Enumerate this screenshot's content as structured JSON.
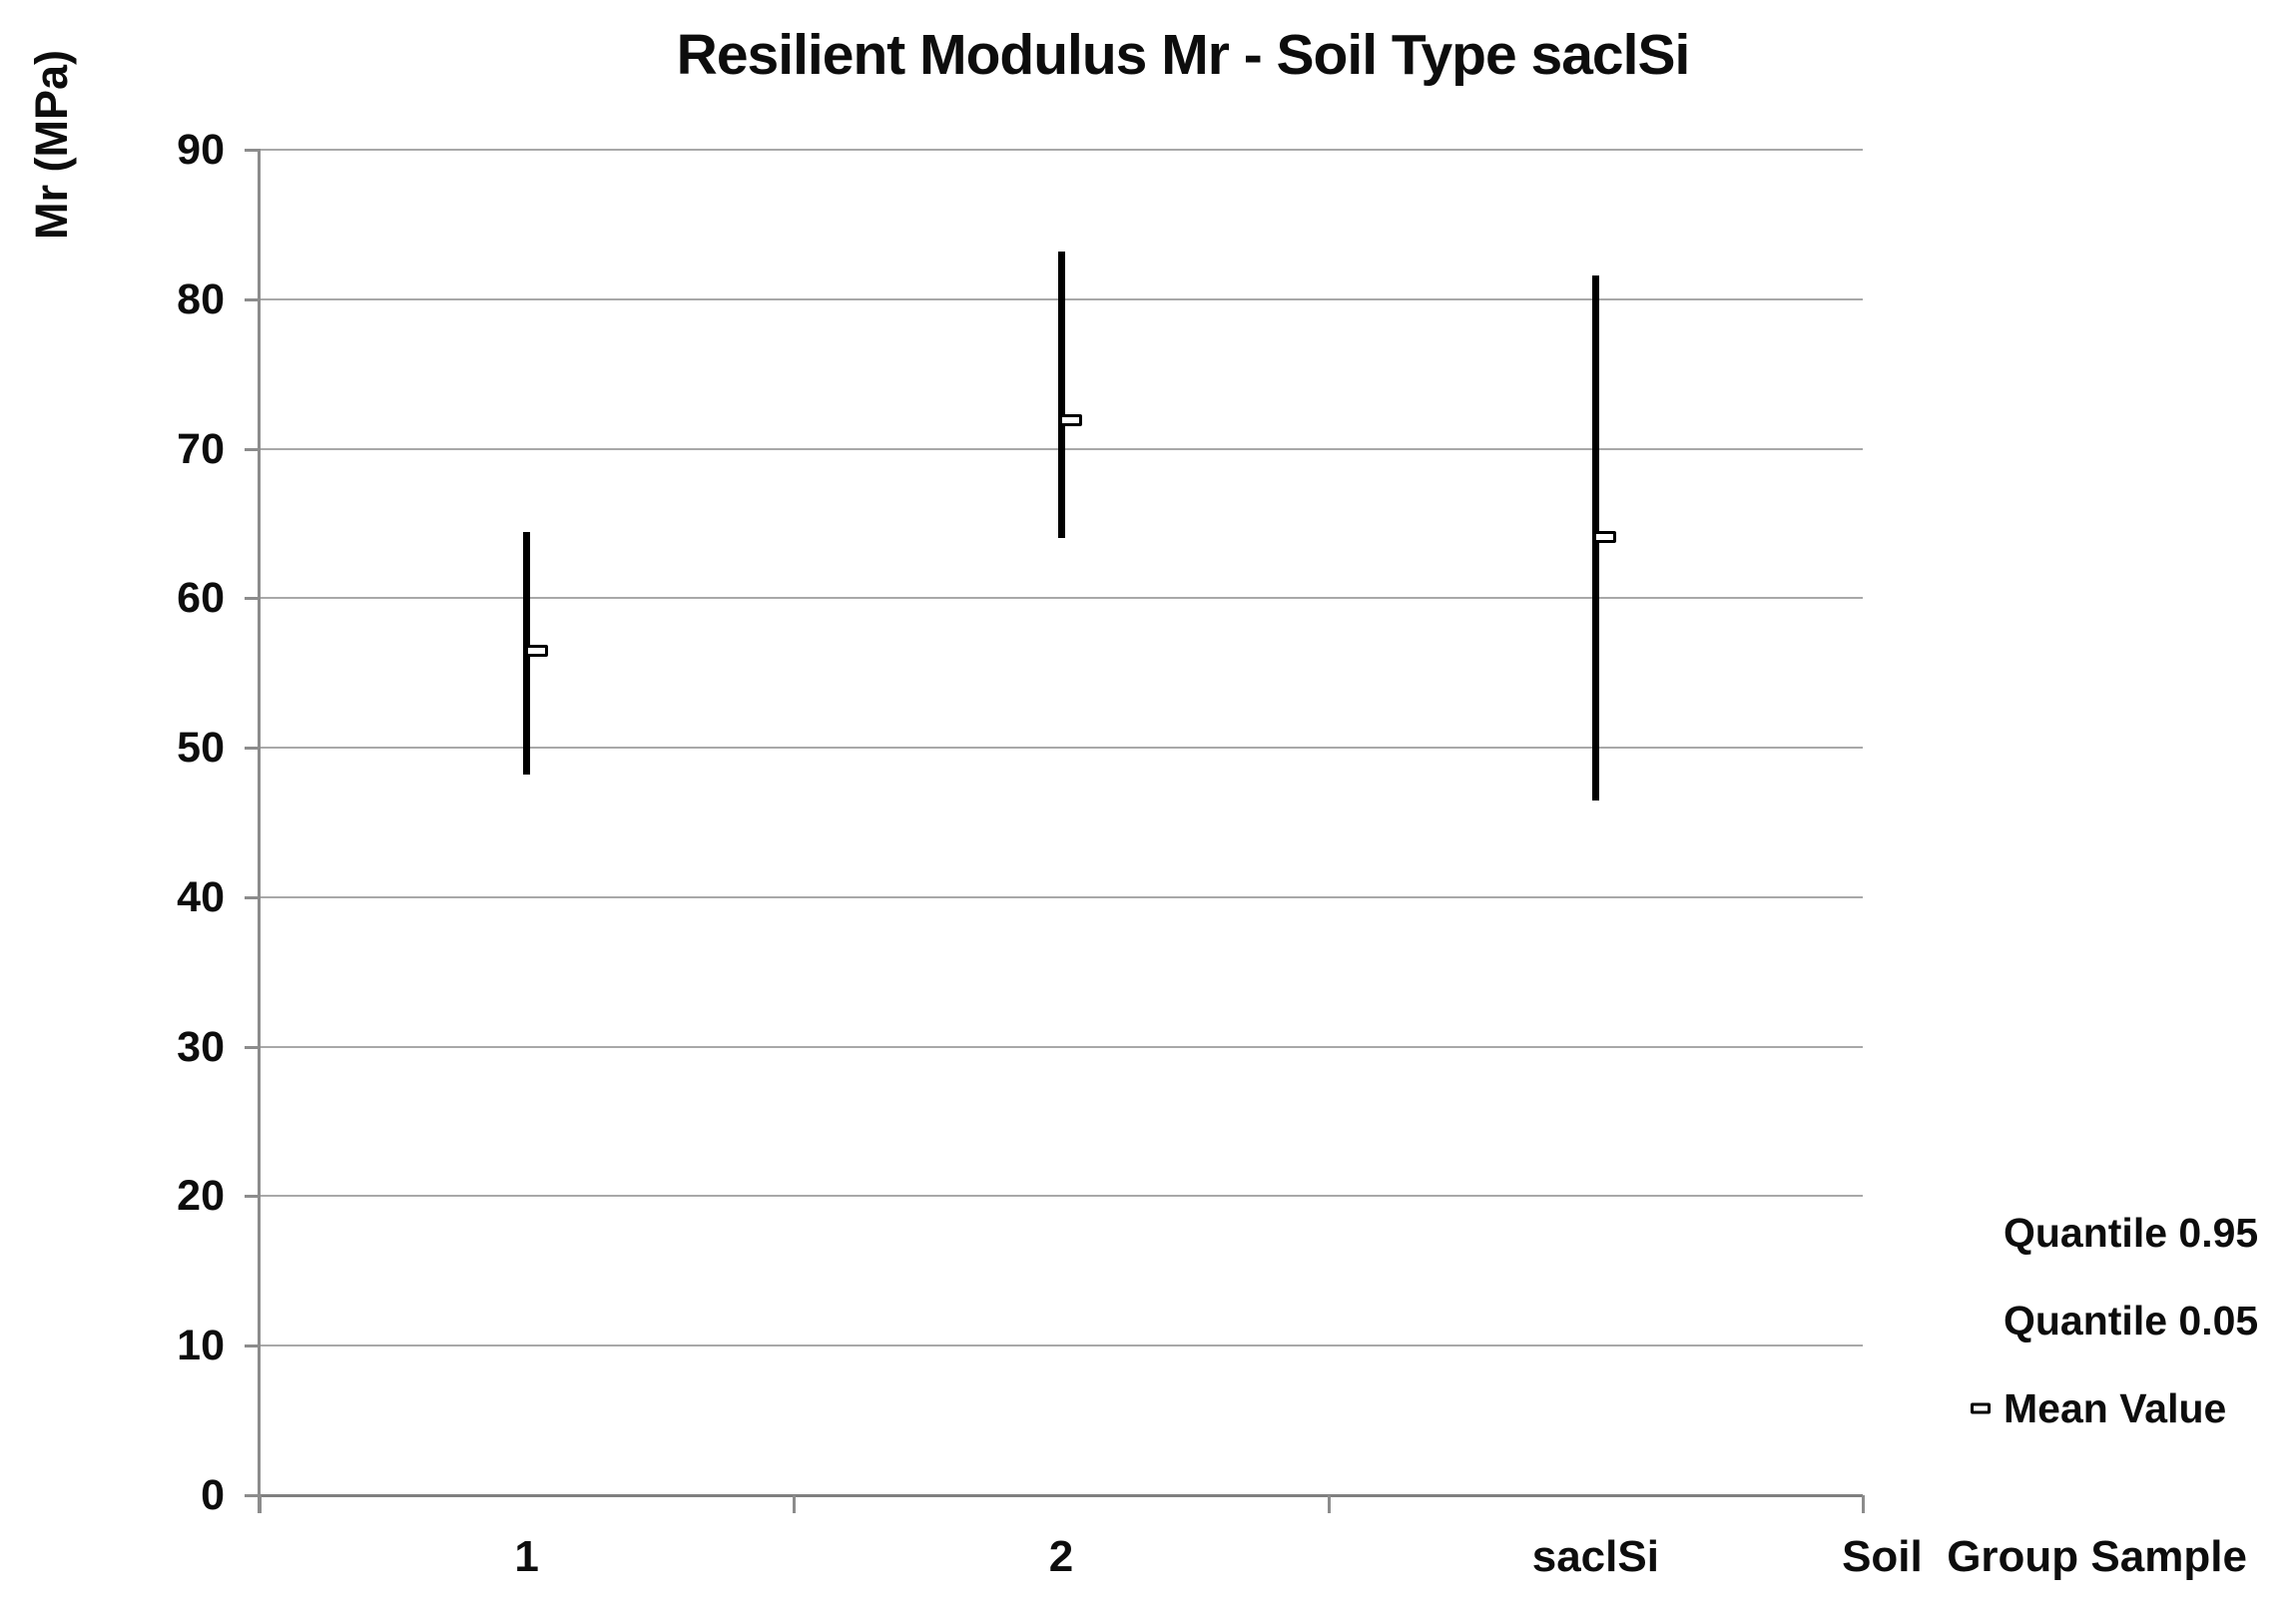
{
  "chart_data": {
    "type": "error-bar",
    "title": "Resilient Modulus Mr - Soil Type saclSi",
    "categories": [
      "1",
      "2",
      "saclSi"
    ],
    "series": [
      {
        "name": "Quantile 0.95",
        "values": [
          64.4,
          83.2,
          81.6
        ]
      },
      {
        "name": "Quantile 0.05",
        "values": [
          48.2,
          64.0,
          46.5
        ]
      },
      {
        "name": "Mean Value",
        "values": [
          56.5,
          71.9,
          64.1
        ]
      }
    ],
    "xlabel": "Soil  Group Sample",
    "ylabel": "Mr (MPa)",
    "ylim": [
      0,
      90
    ],
    "ytick_step": 10,
    "yticks": [
      0,
      10,
      20,
      30,
      40,
      50,
      60,
      70,
      80,
      90
    ],
    "grid": true,
    "legend_position": "right-bottom",
    "legend_items": [
      {
        "label": "Quantile 0.95",
        "marker": "none"
      },
      {
        "label": "Quantile 0.05",
        "marker": "none"
      },
      {
        "label": "Mean Value",
        "marker": "hollow-square"
      }
    ],
    "colors": {
      "bar": "#000000",
      "gridline": "#a8a8a8",
      "axis": "#8c8c8c",
      "zero_line": "#7f7f7f",
      "text": "#0d0d0d",
      "marker_fill": "#ffffff"
    }
  }
}
